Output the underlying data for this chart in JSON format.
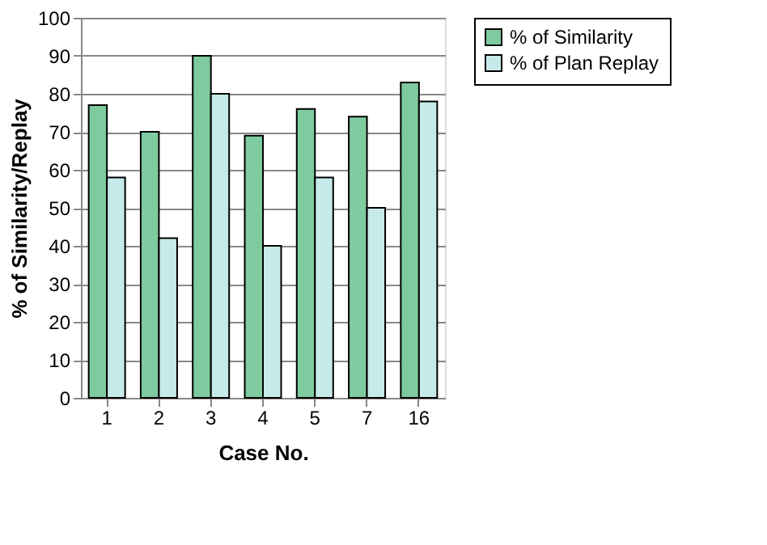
{
  "chart_data": {
    "type": "bar",
    "xlabel": "Case No.",
    "ylabel": "% of Similarity/Replay",
    "categories": [
      "1",
      "2",
      "3",
      "4",
      "5",
      "7",
      "16"
    ],
    "series": [
      {
        "name": "% of Similarity",
        "color": "#7fcba0",
        "values": [
          77,
          70,
          90,
          69,
          76,
          74,
          83
        ]
      },
      {
        "name": "% of Plan Replay",
        "color": "#c6eaea",
        "values": [
          58,
          42,
          80,
          40,
          58,
          50,
          78
        ]
      }
    ],
    "ylim": [
      0,
      100
    ],
    "yticks": [
      0,
      10,
      20,
      30,
      40,
      50,
      60,
      70,
      80,
      90,
      100
    ],
    "grid": "y",
    "legend": "right"
  }
}
